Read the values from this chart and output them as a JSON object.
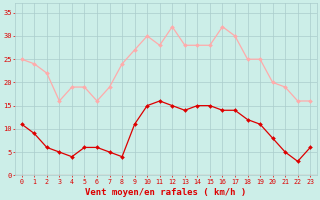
{
  "hours": [
    0,
    1,
    2,
    3,
    4,
    5,
    6,
    7,
    8,
    9,
    10,
    11,
    12,
    13,
    14,
    15,
    16,
    17,
    18,
    19,
    20,
    21,
    22,
    23
  ],
  "wind_avg": [
    11,
    9,
    6,
    5,
    4,
    6,
    6,
    5,
    4,
    11,
    15,
    16,
    15,
    14,
    15,
    15,
    14,
    14,
    12,
    11,
    8,
    5,
    3,
    6
  ],
  "wind_gust": [
    25,
    24,
    22,
    16,
    19,
    19,
    16,
    19,
    24,
    27,
    30,
    28,
    32,
    28,
    28,
    28,
    32,
    30,
    25,
    25,
    20,
    19,
    16,
    16
  ],
  "avg_color": "#dd0000",
  "gust_color": "#ffaaaa",
  "bg_color": "#cceee8",
  "grid_color": "#aacccc",
  "axis_color": "#dd0000",
  "xlabel": "Vent moyen/en rafales ( km/h )",
  "ylim": [
    0,
    37
  ],
  "yticks": [
    0,
    5,
    10,
    15,
    20,
    25,
    30,
    35
  ],
  "marker": "D"
}
